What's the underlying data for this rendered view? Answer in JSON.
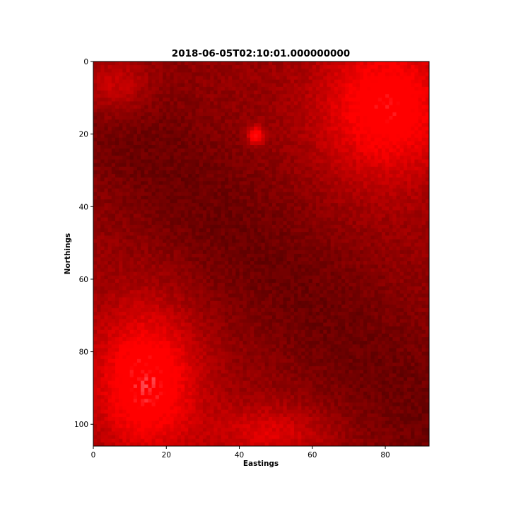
{
  "chart_data": {
    "type": "heatmap",
    "title": "2018-06-05T02:10:01.000000000",
    "xlabel": "Eastings",
    "ylabel": "Northings",
    "xlim": [
      0,
      92
    ],
    "ylim": [
      106,
      0
    ],
    "xticks": [
      0,
      20,
      40,
      60,
      80
    ],
    "yticks": [
      0,
      20,
      40,
      60,
      80,
      100
    ],
    "grid": false,
    "colormap": "red-channel false-colour composite",
    "colors": {
      "bright": "#ff0000",
      "pale": "#ff8a9a",
      "dark": "#3a0000",
      "mid": "#9a0000"
    },
    "regions": [
      {
        "label": "bright-top-left",
        "x": [
          0,
          20
        ],
        "y": [
          0,
          18
        ],
        "value": 0.85
      },
      {
        "label": "bright-top-right",
        "x": [
          58,
          92
        ],
        "y": [
          0,
          40
        ],
        "value": 0.9
      },
      {
        "label": "pale-spot",
        "x": [
          42,
          47
        ],
        "y": [
          17,
          24
        ],
        "value": 1.0
      },
      {
        "label": "bright-bottom-left",
        "x": [
          0,
          30
        ],
        "y": [
          62,
          106
        ],
        "value": 0.95
      },
      {
        "label": "bright-bottom-center",
        "x": [
          30,
          60
        ],
        "y": [
          88,
          106
        ],
        "value": 0.75
      },
      {
        "label": "dark-center-band",
        "x": [
          20,
          70
        ],
        "y": [
          30,
          90
        ],
        "value": 0.25
      }
    ]
  }
}
